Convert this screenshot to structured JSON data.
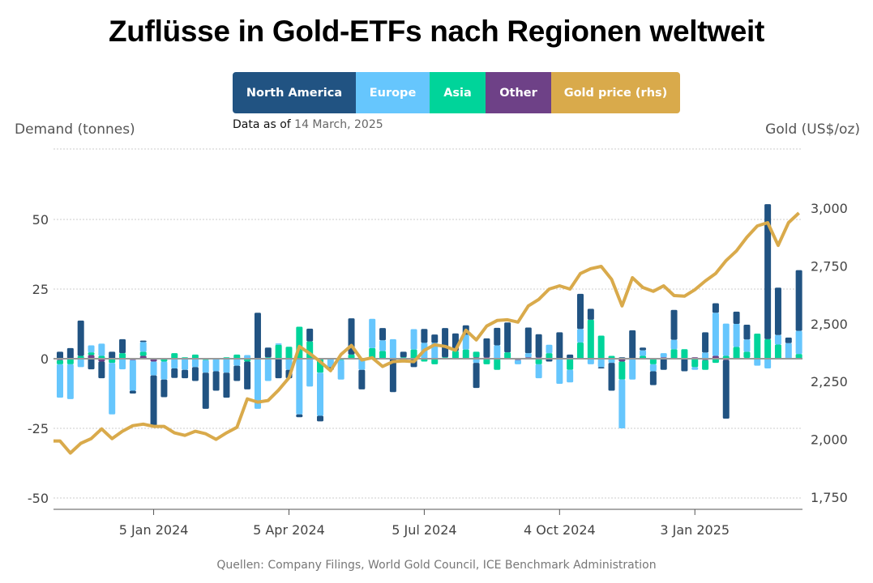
{
  "title": "Zuflüsse in Gold-ETFs nach Regionen weltweit",
  "legend": [
    {
      "label": "North America",
      "color": "#215382"
    },
    {
      "label": "Europe",
      "color": "#66c6fd"
    },
    {
      "label": "Asia",
      "color": "#00d49a"
    },
    {
      "label": "Other",
      "color": "#6e4187"
    },
    {
      "label": "Gold price (rhs)",
      "color": "#d9aa4b"
    }
  ],
  "as_of_label": "Data as of",
  "as_of_date": "14 March, 2025",
  "source": "Quellen: Company Filings, World Gold Council, ICE Benchmark Administration",
  "chart_data": {
    "type": "bar",
    "stacked": true,
    "title": "Zuflüsse in Gold-ETFs nach Regionen weltweit",
    "ylabel": "Demand (tonnes)",
    "y2label": "Gold (US$/oz)",
    "ylim": [
      -50,
      75
    ],
    "y2lim": [
      1750,
      3000
    ],
    "yticks": [
      "-50",
      "-25",
      "0",
      "25",
      "50"
    ],
    "y2ticks": [
      "1,750",
      "2,000",
      "2,250",
      "2,500",
      "2,750",
      "3,000"
    ],
    "xticks": [
      {
        "date": "2024-01-05",
        "label": "5 Jan 2024"
      },
      {
        "date": "2024-04-05",
        "label": "5 Apr 2024"
      },
      {
        "date": "2024-07-05",
        "label": "5 Jul 2024"
      },
      {
        "date": "2024-10-04",
        "label": "4 Oct 2024"
      },
      {
        "date": "2025-01-03",
        "label": "3 Jan 2025"
      }
    ],
    "grid": true,
    "legend_position": "top",
    "x": [
      "2023-11-03",
      "2023-11-10",
      "2023-11-17",
      "2023-11-24",
      "2023-12-01",
      "2023-12-08",
      "2023-12-15",
      "2023-12-22",
      "2023-12-29",
      "2024-01-05",
      "2024-01-12",
      "2024-01-19",
      "2024-01-26",
      "2024-02-02",
      "2024-02-09",
      "2024-02-16",
      "2024-02-23",
      "2024-03-01",
      "2024-03-08",
      "2024-03-15",
      "2024-03-22",
      "2024-03-29",
      "2024-04-05",
      "2024-04-12",
      "2024-04-19",
      "2024-04-26",
      "2024-05-03",
      "2024-05-10",
      "2024-05-17",
      "2024-05-24",
      "2024-05-31",
      "2024-06-07",
      "2024-06-14",
      "2024-06-21",
      "2024-06-28",
      "2024-07-05",
      "2024-07-12",
      "2024-07-19",
      "2024-07-26",
      "2024-08-02",
      "2024-08-09",
      "2024-08-16",
      "2024-08-23",
      "2024-08-30",
      "2024-09-06",
      "2024-09-13",
      "2024-09-20",
      "2024-09-27",
      "2024-10-04",
      "2024-10-11",
      "2024-10-18",
      "2024-10-25",
      "2024-11-01",
      "2024-11-08",
      "2024-11-15",
      "2024-11-22",
      "2024-11-29",
      "2024-12-06",
      "2024-12-13",
      "2024-12-20",
      "2024-12-27",
      "2025-01-03",
      "2025-01-10",
      "2025-01-17",
      "2025-01-24",
      "2025-01-31",
      "2025-02-07",
      "2025-02-14",
      "2025-02-21",
      "2025-02-28",
      "2025-03-07",
      "2025-03-14"
    ],
    "series": [
      {
        "name": "North America",
        "values": [
          2.5,
          3.8,
          12.7,
          -3.8,
          -6,
          2.5,
          5,
          -1,
          0.5,
          -18,
          -6.3,
          -3.4,
          -3,
          -5,
          -13,
          -7,
          -9,
          -5.5,
          -10,
          16.5,
          3.5,
          -7,
          -3,
          -1,
          4.6,
          -2,
          -1,
          0,
          13,
          -7,
          0,
          4.4,
          -12,
          2,
          -3,
          5,
          3,
          10.5,
          6.3,
          3.4,
          -9,
          6.8,
          6.3,
          10.7,
          0,
          9.2,
          8.3,
          -1,
          9.5,
          1.5,
          12.6,
          3.9,
          -0.5,
          -10,
          0.5,
          10.2,
          1,
          -5,
          -4,
          10.7,
          -4.5,
          0,
          7.3,
          3.4,
          -21,
          4.4,
          5.3,
          0,
          48.5,
          17,
          2,
          21.8
        ]
      },
      {
        "name": "Europe",
        "values": [
          -12,
          -12.5,
          -3,
          2.5,
          4.4,
          -18.5,
          -3.8,
          -11,
          3.5,
          -5,
          -6.5,
          -3.5,
          -4,
          -3,
          -4.5,
          -4.5,
          -5,
          -2.5,
          1.3,
          -18,
          -8,
          0.5,
          -4,
          -20,
          -10,
          -15.5,
          -3,
          -7,
          0,
          -4,
          10.5,
          3.8,
          7,
          0,
          7.3,
          5.7,
          5.7,
          0,
          0,
          5.3,
          -1.5,
          0,
          4.8,
          0,
          -1.5,
          1.5,
          -5,
          3,
          -9,
          -4.5,
          4.9,
          -2,
          -3,
          -1.5,
          -17.5,
          -7.5,
          2,
          -2.5,
          1.5,
          3.4,
          0,
          -1,
          2.2,
          15.5,
          11.6,
          8.3,
          4.4,
          -2.5,
          -3.5,
          3.4,
          5.6,
          8.3
        ]
      },
      {
        "name": "Asia",
        "values": [
          -1.5,
          -2,
          1,
          1,
          1,
          -1.5,
          2,
          0,
          1.5,
          0,
          -1,
          2,
          0.5,
          1.5,
          -0.5,
          0,
          0.5,
          1.5,
          -1,
          0,
          0.5,
          5,
          4.3,
          11.5,
          6.2,
          -5,
          0,
          -0.5,
          1.5,
          0,
          3.8,
          2.8,
          0,
          0.5,
          3.3,
          -1,
          -2,
          0.5,
          2.8,
          3.3,
          2,
          -2,
          -4,
          2.3,
          0,
          0,
          -2,
          2,
          0,
          -4,
          5.8,
          14,
          8.3,
          1,
          -6.5,
          0,
          1,
          -2,
          0,
          3.4,
          3.4,
          -3,
          -3.5,
          -1.5,
          1,
          4.2,
          2.2,
          9,
          7,
          5.1,
          0,
          1.7
        ]
      },
      {
        "name": "Other",
        "values": [
          -0.5,
          0,
          0,
          1.3,
          -1,
          0,
          0,
          -0.5,
          1,
          -1,
          0,
          0,
          0,
          0,
          0,
          0,
          0,
          0,
          0,
          0,
          0,
          0,
          0,
          0,
          0,
          0,
          0,
          0,
          0,
          0,
          0,
          0,
          0,
          -0.3,
          0,
          0,
          0,
          0,
          0,
          0,
          0.5,
          0.5,
          0,
          0,
          -0.5,
          0.5,
          0.5,
          0,
          0,
          0,
          0,
          0,
          0,
          0,
          -1,
          0,
          0,
          0,
          0.5,
          0,
          0,
          0.5,
          -0.5,
          1,
          -0.5,
          0,
          0.3,
          0,
          0,
          0,
          0,
          0
        ]
      },
      {
        "name": "Gold price (rhs)",
        "axis": "right",
        "type": "line",
        "values": [
          1993,
          1941,
          1983,
          2003,
          2045,
          2003,
          2035,
          2059,
          2066,
          2056,
          2056,
          2028,
          2017,
          2035,
          2024,
          2000,
          2028,
          2052,
          2175,
          2161,
          2168,
          2213,
          2266,
          2402,
          2371,
          2336,
          2297,
          2367,
          2406,
          2343,
          2353,
          2315,
          2336,
          2339,
          2336,
          2385,
          2409,
          2402,
          2385,
          2472,
          2430,
          2490,
          2514,
          2517,
          2507,
          2577,
          2605,
          2650,
          2664,
          2650,
          2717,
          2738,
          2748,
          2692,
          2577,
          2699,
          2657,
          2640,
          2664,
          2622,
          2619,
          2647,
          2685,
          2717,
          2773,
          2815,
          2874,
          2923,
          2937,
          2839,
          2937,
          2979
        ]
      }
    ]
  }
}
